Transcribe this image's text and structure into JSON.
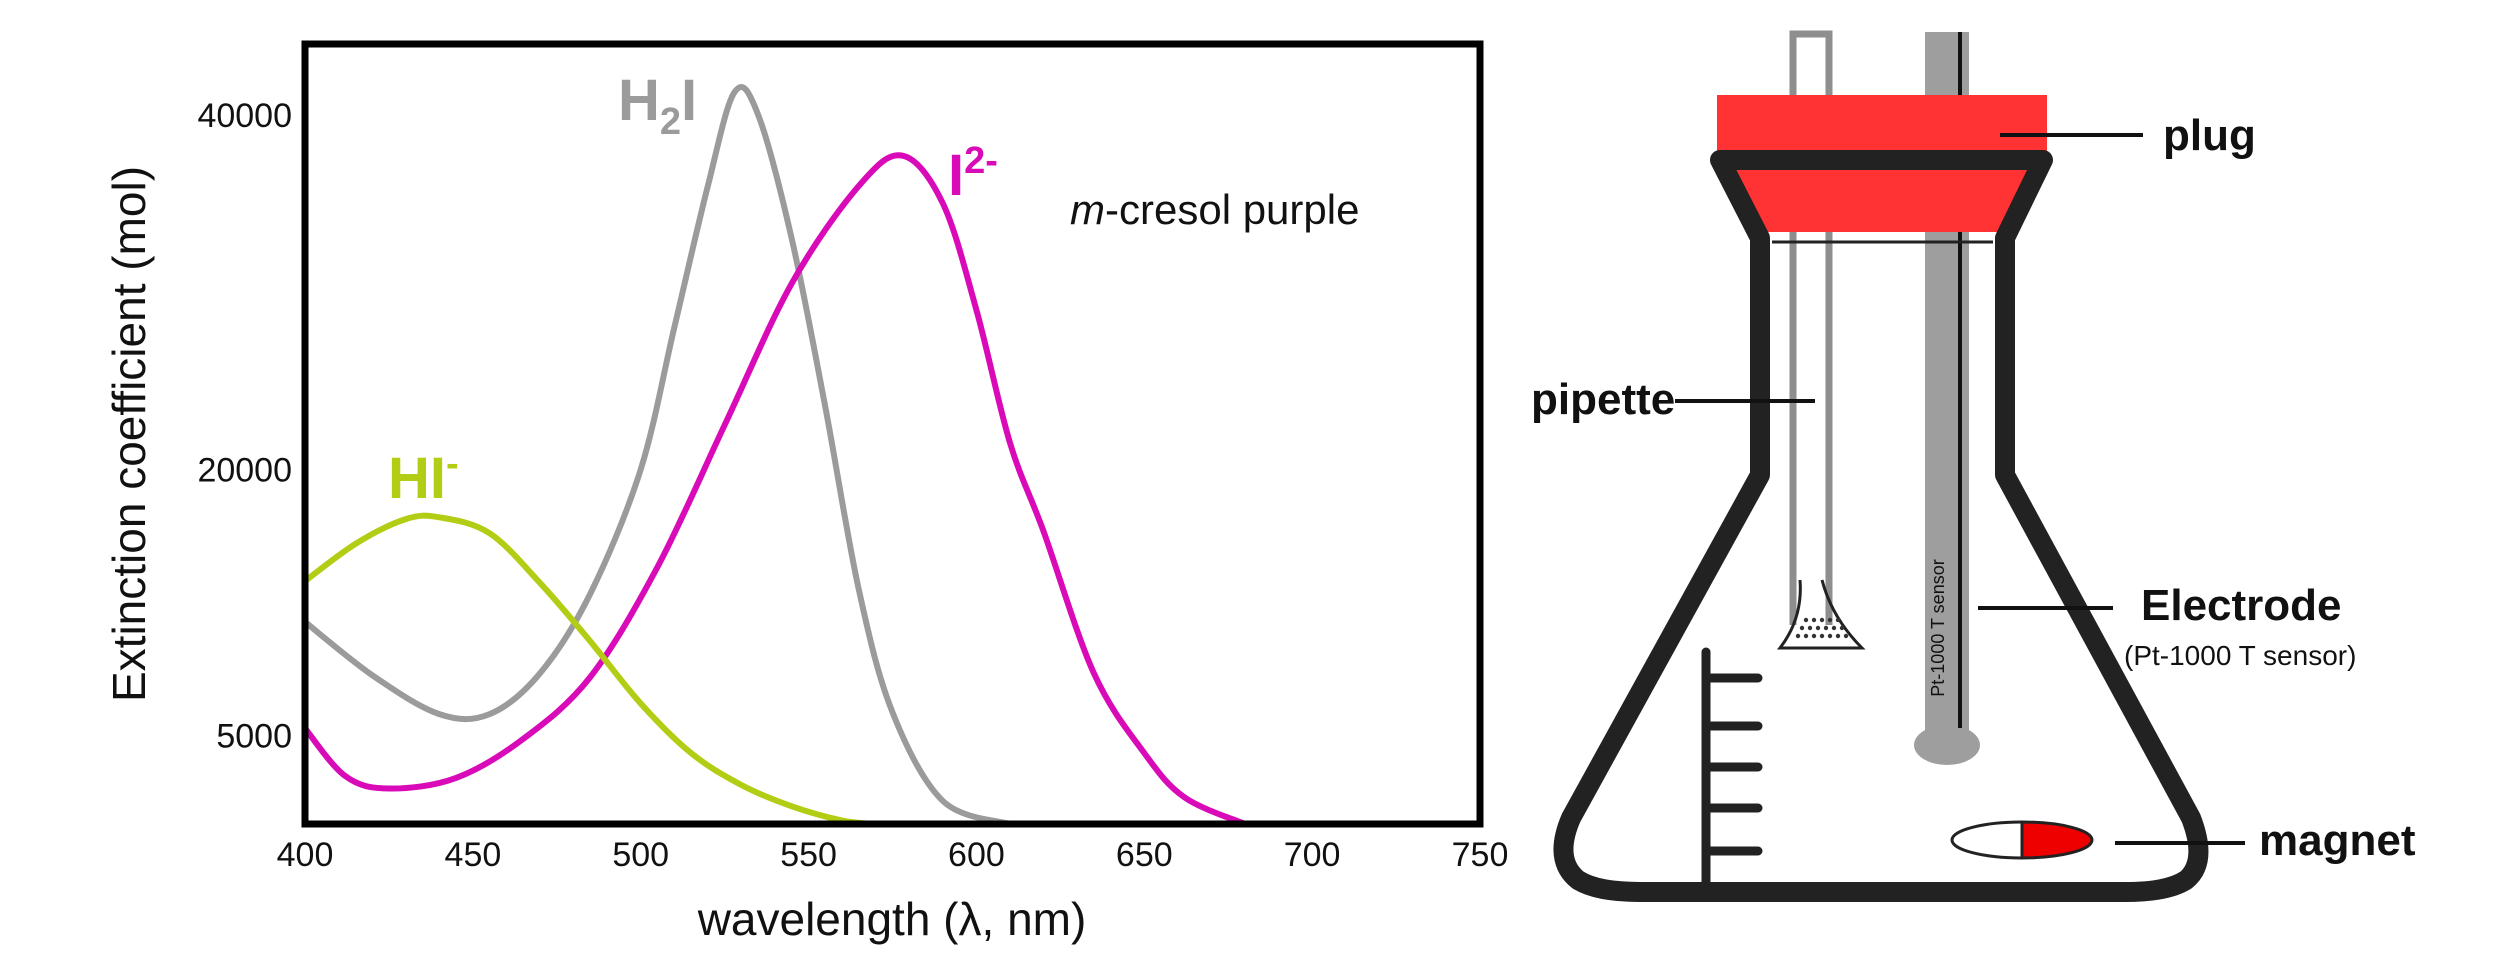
{
  "chart_data": {
    "type": "line",
    "title": "",
    "annotation_prefix": "m",
    "annotation_rest": "-cresol purple",
    "xlabel": "wavelength (λ, nm)",
    "ylabel": "Extinction coefficient (mol)",
    "xlim": [
      400,
      750
    ],
    "ylim": [
      0,
      44000
    ],
    "x_ticks": [
      "400",
      "450",
      "500",
      "550",
      "600",
      "650",
      "700",
      "750"
    ],
    "y_ticks": [
      {
        "value": 5000,
        "label": "5000"
      },
      {
        "value": 20000,
        "label": "20000"
      },
      {
        "value": 40000,
        "label": "40000"
      }
    ],
    "grid": false,
    "series": [
      {
        "name_base": "H",
        "name_sub": "2",
        "name_tail": "I",
        "name_sup": "",
        "color": "#9b9b9b",
        "points": [
          [
            400,
            11400
          ],
          [
            420,
            8400
          ],
          [
            440,
            6200
          ],
          [
            455,
            6200
          ],
          [
            470,
            8500
          ],
          [
            485,
            13000
          ],
          [
            500,
            20000
          ],
          [
            510,
            28000
          ],
          [
            520,
            36000
          ],
          [
            528,
            41300
          ],
          [
            535,
            40000
          ],
          [
            545,
            33000
          ],
          [
            555,
            23500
          ],
          [
            565,
            13200
          ],
          [
            575,
            6300
          ],
          [
            590,
            1300
          ],
          [
            610,
            0
          ]
        ]
      },
      {
        "name_base": "I",
        "name_sub": "",
        "name_tail": "",
        "name_sup": "2-",
        "color": "#d90ab8",
        "points": [
          [
            400,
            5400
          ],
          [
            412,
            2700
          ],
          [
            425,
            2000
          ],
          [
            445,
            2600
          ],
          [
            465,
            4800
          ],
          [
            485,
            8300
          ],
          [
            505,
            14500
          ],
          [
            525,
            22500
          ],
          [
            545,
            30500
          ],
          [
            565,
            36000
          ],
          [
            578,
            37700
          ],
          [
            590,
            35000
          ],
          [
            600,
            29000
          ],
          [
            610,
            21500
          ],
          [
            620,
            16500
          ],
          [
            635,
            8500
          ],
          [
            650,
            4000
          ],
          [
            662,
            1500
          ],
          [
            680,
            0
          ]
        ]
      },
      {
        "name_base": "HI",
        "name_sub": "",
        "name_tail": "",
        "name_sup": "-",
        "color": "#b2cd14",
        "points": [
          [
            400,
            13700
          ],
          [
            415,
            15800
          ],
          [
            430,
            17200
          ],
          [
            440,
            17300
          ],
          [
            455,
            16400
          ],
          [
            470,
            13600
          ],
          [
            485,
            10300
          ],
          [
            500,
            6800
          ],
          [
            515,
            4000
          ],
          [
            530,
            2200
          ],
          [
            545,
            1000
          ],
          [
            560,
            200
          ],
          [
            570,
            0
          ]
        ]
      }
    ]
  },
  "apparatus": {
    "labels": {
      "plug": "plug",
      "pipette": "pipette",
      "electrode": "Electrode",
      "electrode_detail": "(Pt-1000 T sensor)",
      "sensor_text": "Pt-1000 T sensor",
      "magnet": "magnet"
    },
    "colors": {
      "plug": "#ff3333",
      "flask": "#222222",
      "electrode": "#9e9e9e",
      "pipette": "#8e8e8e",
      "magnet": "#ee0000"
    }
  }
}
